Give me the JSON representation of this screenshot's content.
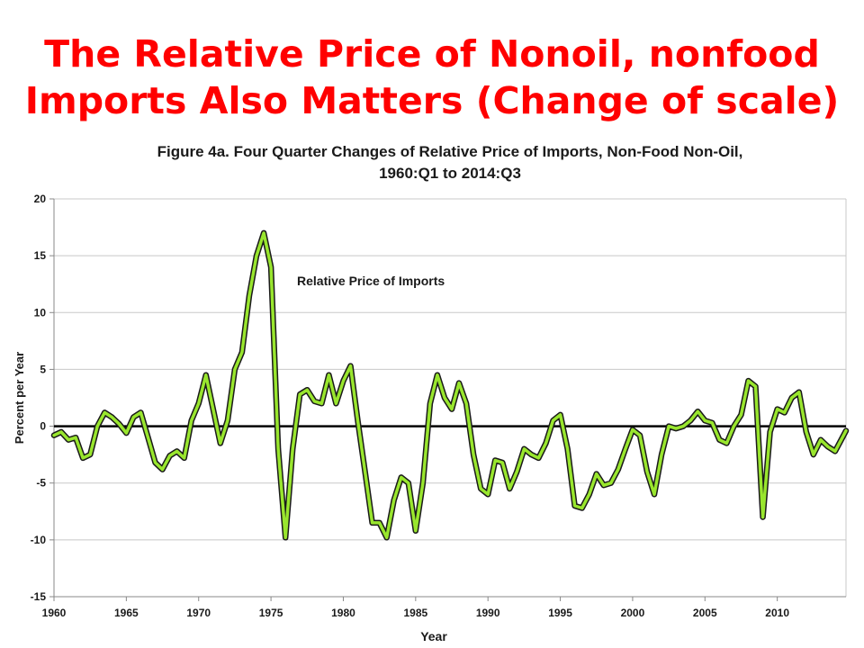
{
  "slide_title": {
    "line1": "The Relative Price of Nonoil, nonfood",
    "line2": "Imports Also Matters (Change of scale)"
  },
  "chart_data": {
    "type": "line",
    "title_line1": "Figure 4a. Four Quarter Changes of Relative Price of Imports, Non-Food Non-Oil,",
    "title_line2": "1960:Q1 to 2014:Q3",
    "xlabel": "Year",
    "ylabel": "Percent per Year",
    "xlim": [
      1960,
      2014.75
    ],
    "ylim": [
      -15,
      20
    ],
    "x_ticks": [
      "1960",
      "1965",
      "1970",
      "1975",
      "1980",
      "1985",
      "1990",
      "1995",
      "2000",
      "2005",
      "2010"
    ],
    "y_ticks": [
      "20",
      "15",
      "10",
      "5",
      "0",
      "-5",
      "-10",
      "-15"
    ],
    "grid": true,
    "zero_line": true,
    "annotation": "Relative Price of Imports",
    "colors": {
      "line": "#99e62e",
      "outline": "#1a1a1a",
      "title": "#ff0000",
      "grid": "#c8c8c8"
    },
    "series": [
      {
        "x": [
          1960,
          1960.5,
          1961,
          1961.5,
          1962,
          1962.5,
          1963,
          1963.5,
          1964,
          1964.5,
          1965,
          1965.5,
          1966,
          1966.5,
          1967,
          1967.5,
          1968,
          1968.5,
          1969,
          1969.5,
          1970,
          1970.5,
          1971,
          1971.5,
          1972,
          1972.5,
          1973,
          1973.5,
          1974,
          1974.5,
          1975,
          1975.5,
          1976,
          1976.5,
          1977,
          1977.5,
          1978,
          1978.5,
          1979,
          1979.5,
          1980,
          1980.5,
          1981,
          1981.5,
          1982,
          1982.5,
          1983,
          1983.5,
          1984,
          1984.5,
          1985,
          1985.5,
          1986,
          1986.5,
          1987,
          1987.5,
          1988,
          1988.5,
          1989,
          1989.5,
          1990,
          1990.5,
          1991,
          1991.5,
          1992,
          1992.5,
          1993,
          1993.5,
          1994,
          1994.5,
          1995,
          1995.5,
          1996,
          1996.5,
          1997,
          1997.5,
          1998,
          1998.5,
          1999,
          1999.5,
          2000,
          2000.5,
          2001,
          2001.5,
          2002,
          2002.5,
          2003,
          2003.5,
          2004,
          2004.5,
          2005,
          2005.5,
          2006,
          2006.5,
          2007,
          2007.5,
          2008,
          2008.5,
          2009,
          2009.5,
          2010,
          2010.5,
          2011,
          2011.5,
          2012,
          2012.5,
          2013,
          2013.5,
          2014,
          2014.5,
          2014.75
        ],
        "values": [
          -0.8,
          -0.5,
          -1.2,
          -1.0,
          -2.8,
          -2.5,
          0.0,
          1.2,
          0.8,
          0.2,
          -0.6,
          0.8,
          1.2,
          -1.0,
          -3.2,
          -3.8,
          -2.6,
          -2.2,
          -2.8,
          0.5,
          2.0,
          4.5,
          1.5,
          -1.5,
          0.5,
          5.0,
          6.5,
          11.5,
          15.0,
          17.0,
          14.0,
          -2.0,
          -9.8,
          -2.0,
          2.8,
          3.2,
          2.2,
          2.0,
          4.5,
          2.0,
          4.0,
          5.3,
          0.5,
          -4.0,
          -8.5,
          -8.5,
          -9.8,
          -6.5,
          -4.5,
          -5.0,
          -9.2,
          -5.0,
          2.0,
          4.5,
          2.5,
          1.5,
          3.8,
          2.0,
          -2.5,
          -5.5,
          -6.0,
          -3.0,
          -3.2,
          -5.5,
          -4.0,
          -2.0,
          -2.5,
          -2.8,
          -1.5,
          0.5,
          1.0,
          -2.0,
          -7.0,
          -7.2,
          -6.0,
          -4.2,
          -5.2,
          -5.0,
          -3.8,
          -2.0,
          -0.3,
          -0.8,
          -4.0,
          -6.0,
          -2.5,
          0.0,
          -0.2,
          0.0,
          0.5,
          1.3,
          0.5,
          0.3,
          -1.2,
          -1.5,
          0.0,
          1.0,
          4.0,
          3.5,
          -8.0,
          -0.5,
          1.5,
          1.2,
          2.5,
          3.0,
          -0.5,
          -2.5,
          -1.2,
          -1.8,
          -2.2,
          -1.0,
          -0.4
        ]
      }
    ]
  }
}
